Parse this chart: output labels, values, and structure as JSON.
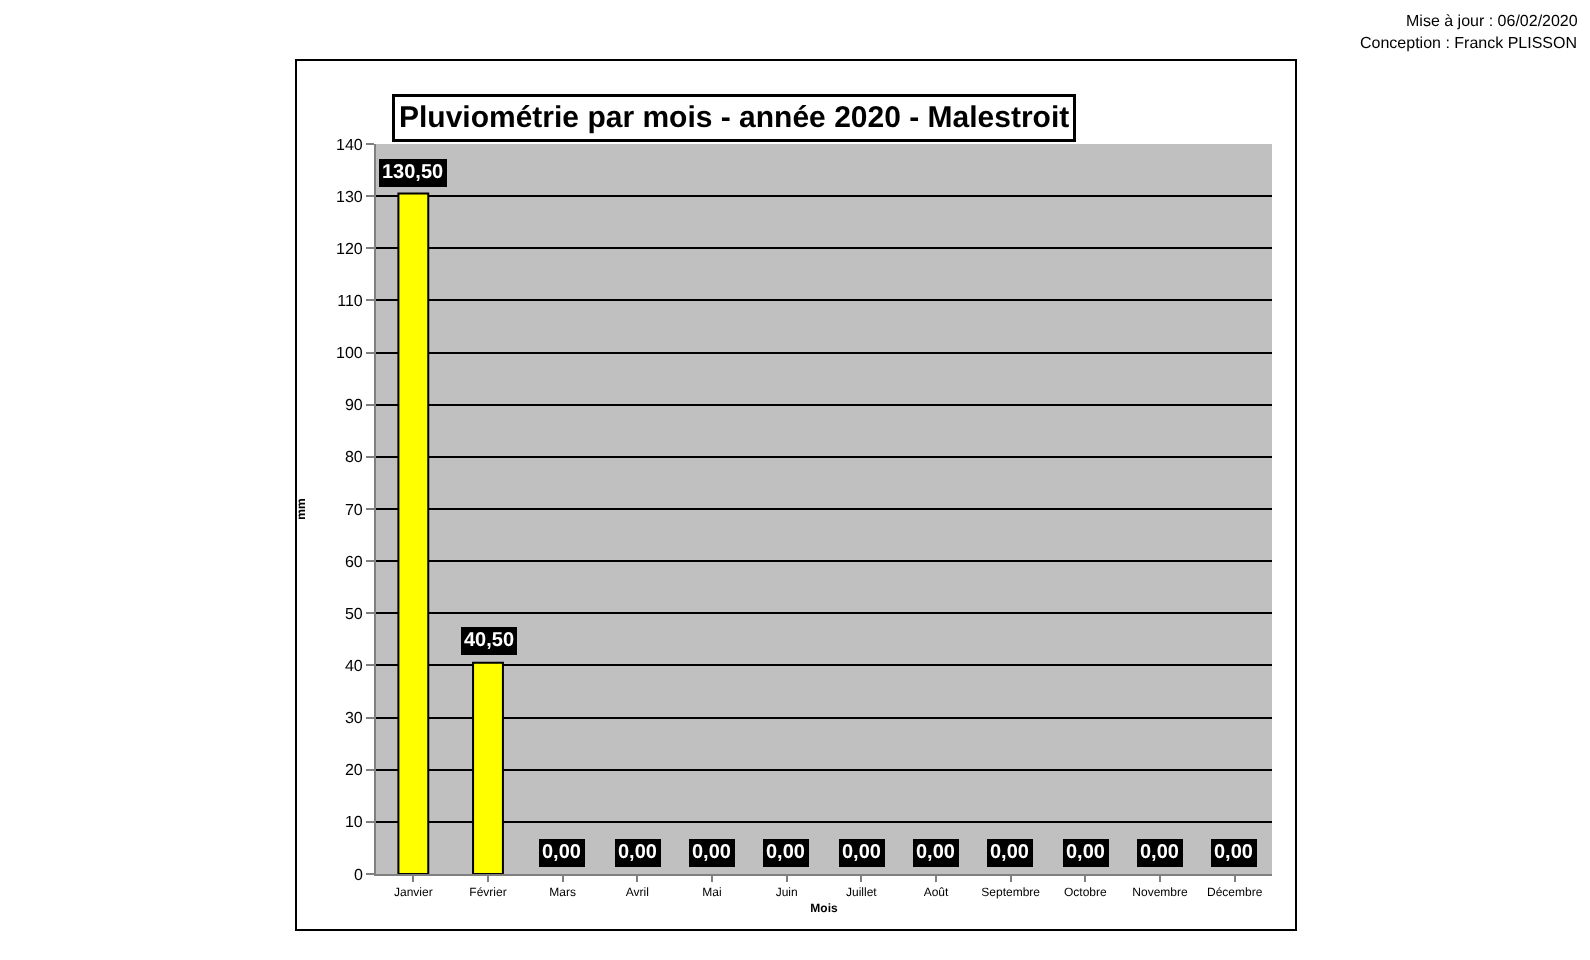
{
  "chart_data": {
    "type": "bar",
    "title": "Pluviométrie par mois - année 2020 - Malestroit",
    "xlabel": "Mois",
    "ylabel": "mm",
    "categories": [
      "Janvier",
      "Février",
      "Mars",
      "Avril",
      "Mai",
      "Juin",
      "Juillet",
      "Août",
      "Septembre",
      "Octobre",
      "Novembre",
      "Décembre"
    ],
    "values": [
      130.5,
      40.5,
      0,
      0,
      0,
      0,
      0,
      0,
      0,
      0,
      0,
      0
    ],
    "value_labels": [
      "130,50",
      "40,50",
      "0,00",
      "0,00",
      "0,00",
      "0,00",
      "0,00",
      "0,00",
      "0,00",
      "0,00",
      "0,00",
      "0,00"
    ],
    "color": "#ffff00",
    "ylim": [
      0,
      140
    ],
    "yticks": [
      0,
      10,
      20,
      30,
      40,
      50,
      60,
      70,
      80,
      90,
      100,
      110,
      120,
      130,
      140
    ],
    "grid": "y",
    "legend": false,
    "annotations": [
      "Mise à jour : 06/02/2020",
      "Conception : Franck PLISSON"
    ]
  }
}
